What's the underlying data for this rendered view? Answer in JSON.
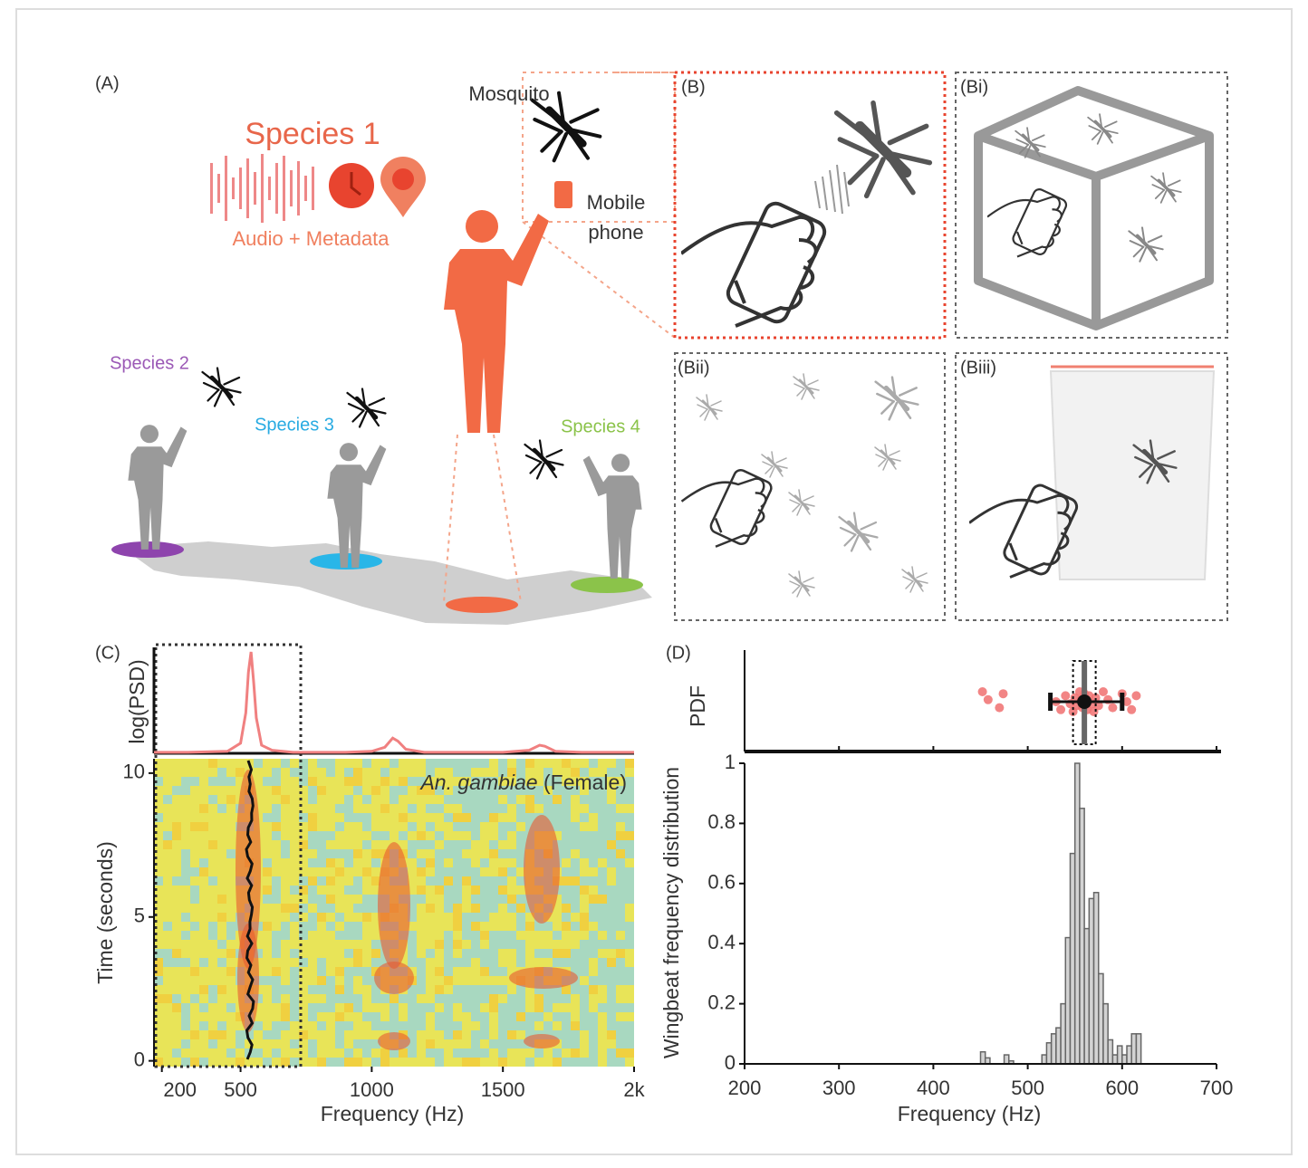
{
  "panels": {
    "a": "(A)",
    "b": "(B)",
    "bi": "(Bi)",
    "bii": "(Bii)",
    "biii": "(Biii)",
    "c": "(C)",
    "d": "(D)"
  },
  "panel_a": {
    "species_1": "Species 1",
    "audio_metadata": "Audio + Metadata",
    "mosquito": "Mosquito",
    "mobile_phone": [
      "Mobile",
      "phone"
    ],
    "species": [
      "Species 2",
      "Species 3",
      "Species 4"
    ]
  },
  "chart_data": [
    {
      "type": "spectrogram",
      "xlabel": "Frequency (Hz)",
      "ylabel": "Time (seconds)",
      "psd_label": "log(PSD)",
      "annotation": {
        "species": "An. gambiae",
        "sex": "(Female)"
      },
      "xlim": [
        170,
        2000
      ],
      "xticks": [
        200,
        500,
        1000,
        1500,
        {
          "value": 2000,
          "label": "2k"
        }
      ],
      "ylim": [
        -0.2,
        10.5
      ],
      "yticks": [
        0,
        5,
        10
      ],
      "psd_ylim": [
        0,
        1
      ],
      "psd": {
        "color": "#f08080",
        "x": [
          170,
          300,
          450,
          500,
          520,
          530,
          540,
          550,
          560,
          580,
          620,
          700,
          900,
          1000,
          1050,
          1080,
          1100,
          1130,
          1200,
          1500,
          1600,
          1640,
          1660,
          1700,
          1800,
          2000
        ],
        "values": [
          0.01,
          0.01,
          0.02,
          0.1,
          0.4,
          0.8,
          1.0,
          0.7,
          0.35,
          0.08,
          0.03,
          0.01,
          0.01,
          0.02,
          0.06,
          0.15,
          0.12,
          0.04,
          0.01,
          0.01,
          0.03,
          0.08,
          0.07,
          0.02,
          0.01,
          0.01
        ]
      }
    },
    {
      "type": "histogram",
      "xlabel": "Frequency (Hz)",
      "ylabel": "Wingbeat frequency distribution",
      "pdf_label": "PDF",
      "xlim": [
        200,
        700
      ],
      "xticks": [
        200,
        300,
        400,
        500,
        600,
        700
      ],
      "ylim": [
        0,
        1
      ],
      "yticks": [
        0,
        0.2,
        0.4,
        0.6,
        0.8,
        1
      ],
      "color": "#d3d3d3",
      "bins": [
        450,
        455,
        460,
        465,
        470,
        475,
        480,
        485,
        490,
        495,
        500,
        505,
        510,
        515,
        520,
        525,
        530,
        535,
        540,
        545,
        550,
        555,
        560,
        565,
        570,
        575,
        580,
        585,
        590,
        595,
        600,
        605,
        610,
        615,
        620
      ],
      "values": [
        0.04,
        0.02,
        0,
        0,
        0,
        0.03,
        0.01,
        0,
        0,
        0,
        0,
        0,
        0,
        0.03,
        0.07,
        0.1,
        0.12,
        0.2,
        0.42,
        0.7,
        1.0,
        0.85,
        0.45,
        0.55,
        0.57,
        0.3,
        0.2,
        0.08,
        0.03,
        0.06,
        0.03,
        0.06,
        0.1,
        0.1
      ],
      "pdf_points": {
        "color": "#f07070",
        "x": [
          452,
          458,
          470,
          474,
          530,
          535,
          540,
          545,
          548,
          550,
          552,
          555,
          557,
          558,
          560,
          562,
          563,
          565,
          568,
          570,
          572,
          575,
          580,
          585,
          590,
          600,
          605,
          610,
          615
        ]
      },
      "box": {
        "q1": 548,
        "median": 560,
        "q3": 572,
        "mean": 560,
        "whisker_low": 524,
        "whisker_high": 600
      }
    }
  ]
}
